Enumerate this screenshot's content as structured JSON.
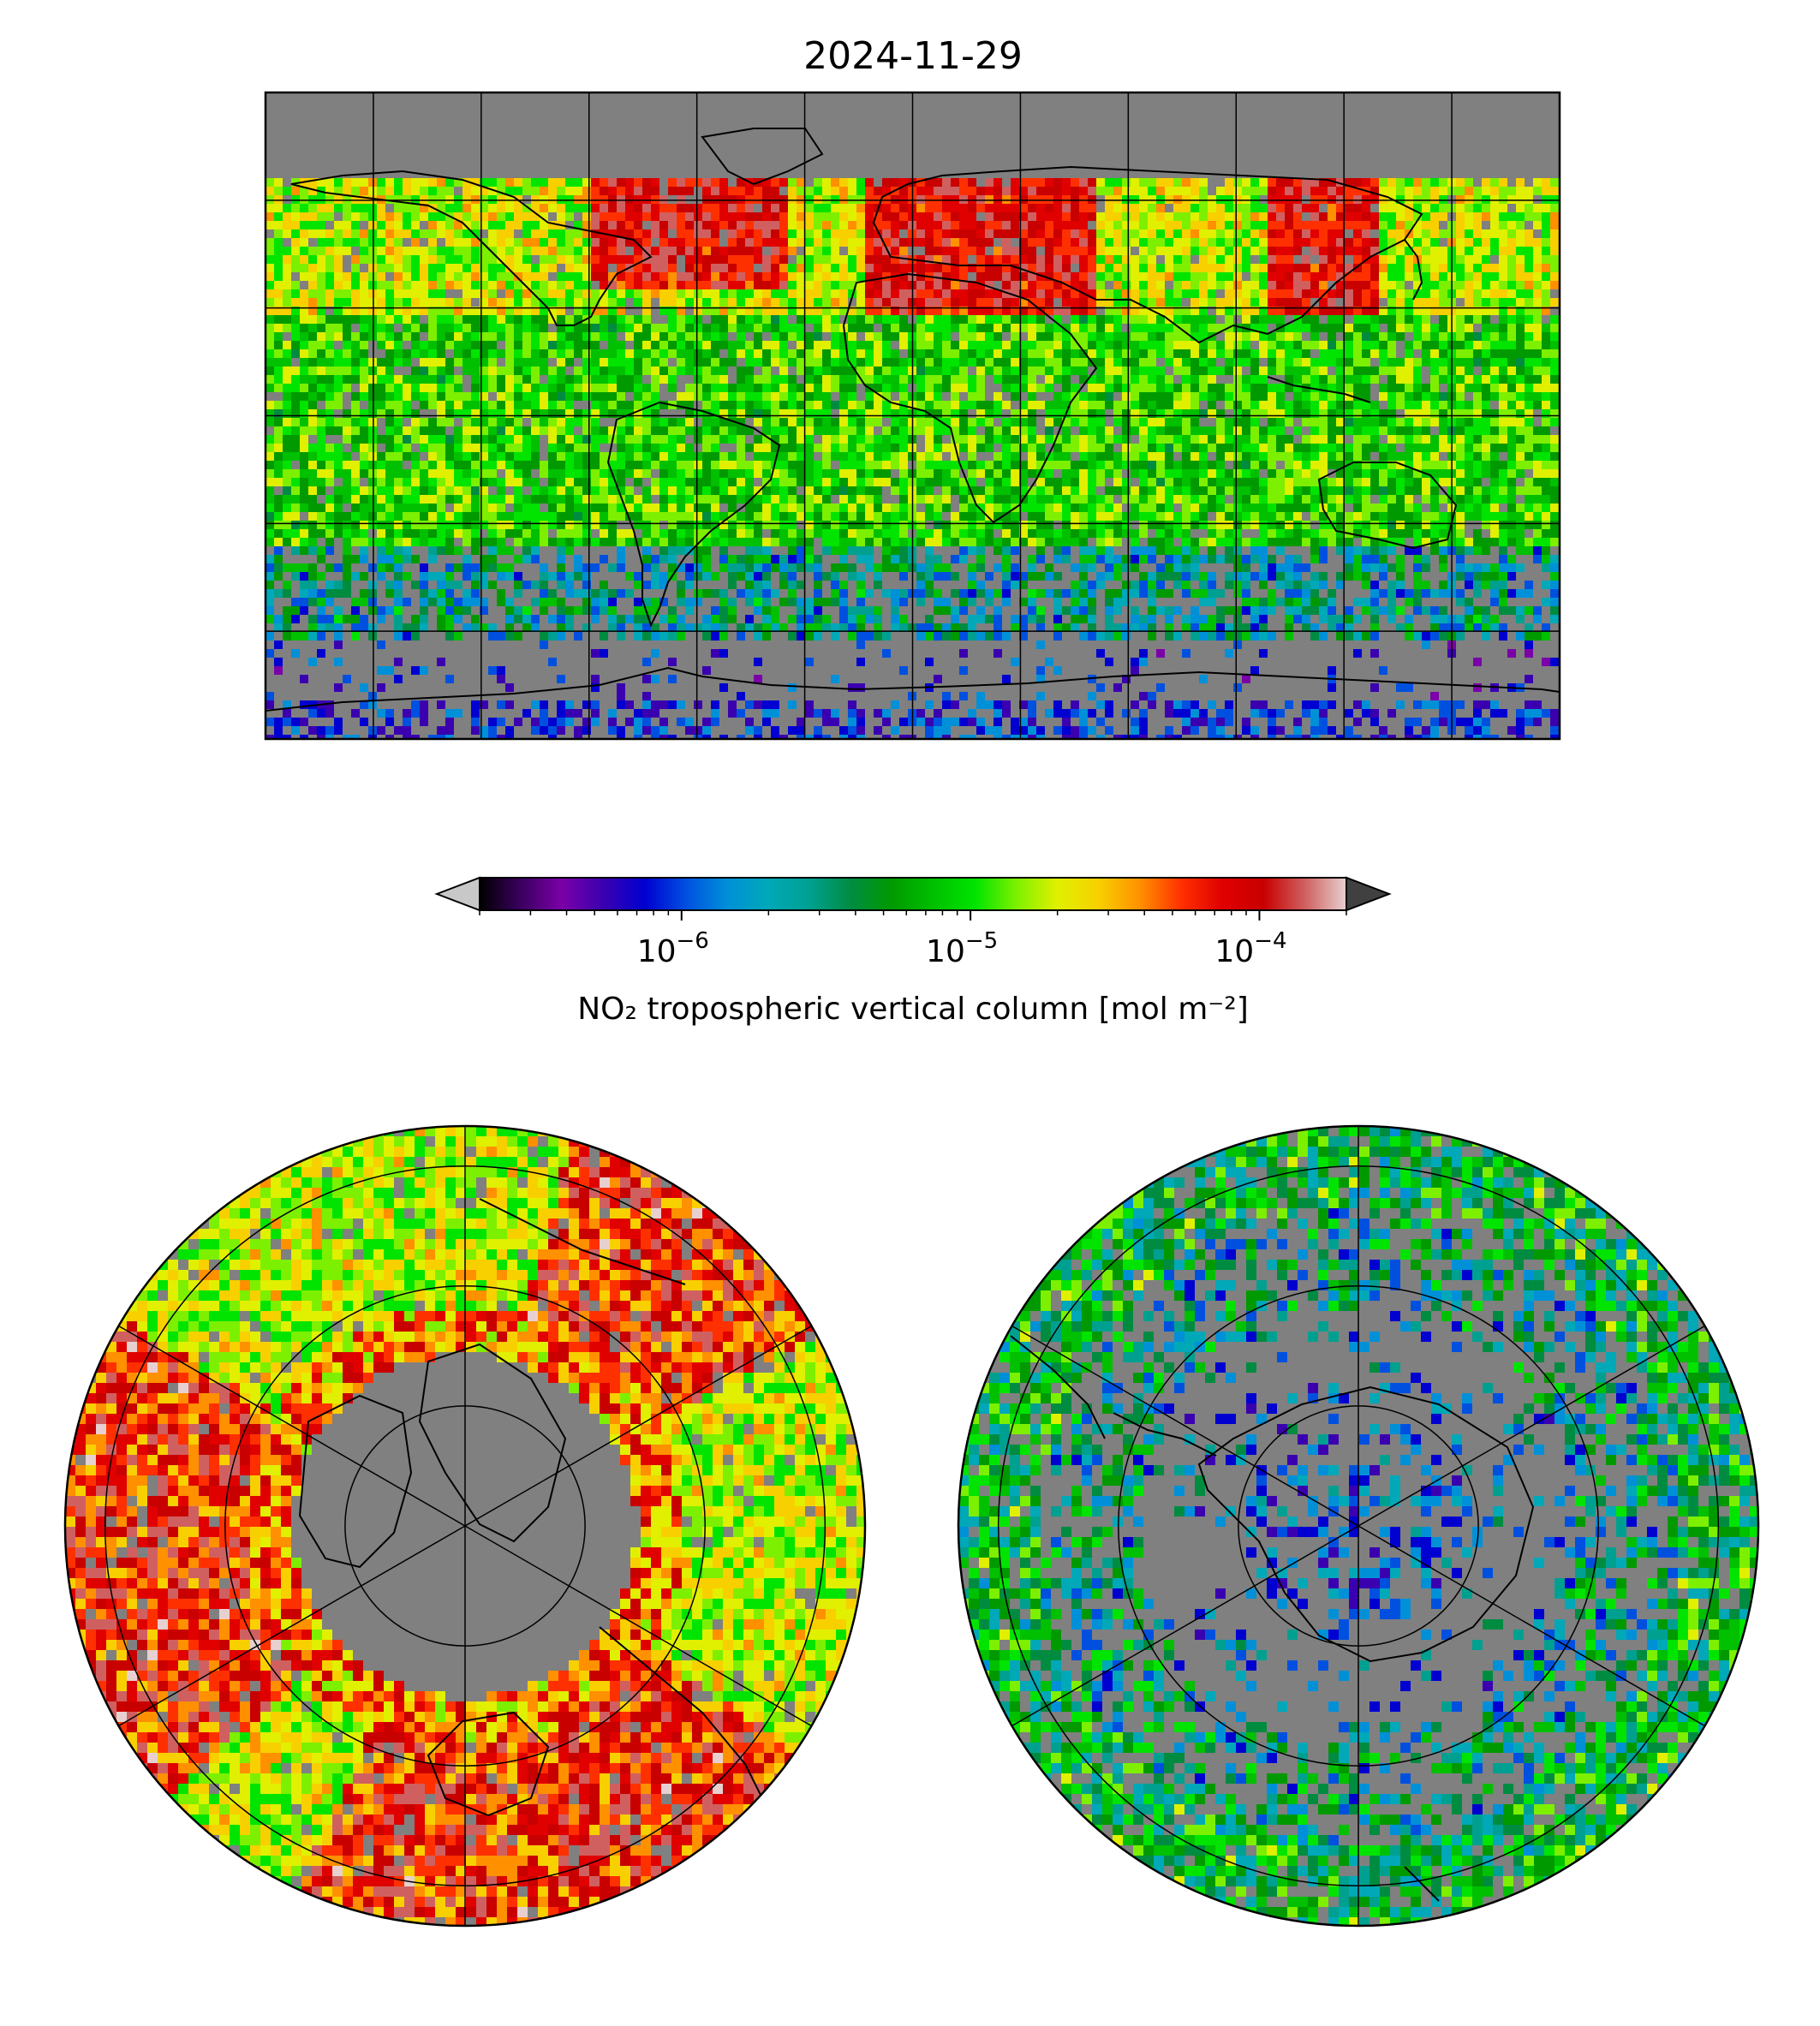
{
  "title": "2024-11-29",
  "colorbar": {
    "label": "NO₂ tropospheric vertical column [mol m⁻²]",
    "scale": "log",
    "vmin": 2e-07,
    "vmax": 0.0002,
    "extend": "both",
    "ticks": [
      {
        "value": 1e-06,
        "base": "10",
        "exp": "−6"
      },
      {
        "value": 1e-05,
        "base": "10",
        "exp": "−5"
      },
      {
        "value": 0.0001,
        "base": "10",
        "exp": "−4"
      }
    ],
    "colormap": [
      "#000000",
      "#3a0060",
      "#7a00a8",
      "#3a00b0",
      "#0000d0",
      "#0050e0",
      "#0090d8",
      "#00a8b8",
      "#00a090",
      "#008c40",
      "#009a00",
      "#00c000",
      "#00e400",
      "#7cf000",
      "#e0f000",
      "#f8d000",
      "#ff9000",
      "#ff3000",
      "#e00000",
      "#c80000",
      "#d06060",
      "#e8d0d0"
    ],
    "under_color": "#c8c8c8",
    "over_color": "#404040"
  },
  "maps": {
    "global": {
      "projection": "plate-carree",
      "missing_color": "#808080",
      "coastline_color": "#000000"
    },
    "north_polar": {
      "projection": "north-polar-stereographic",
      "missing_color": "#808080"
    },
    "south_polar": {
      "projection": "south-polar-stereographic",
      "missing_color": "#808080"
    }
  }
}
